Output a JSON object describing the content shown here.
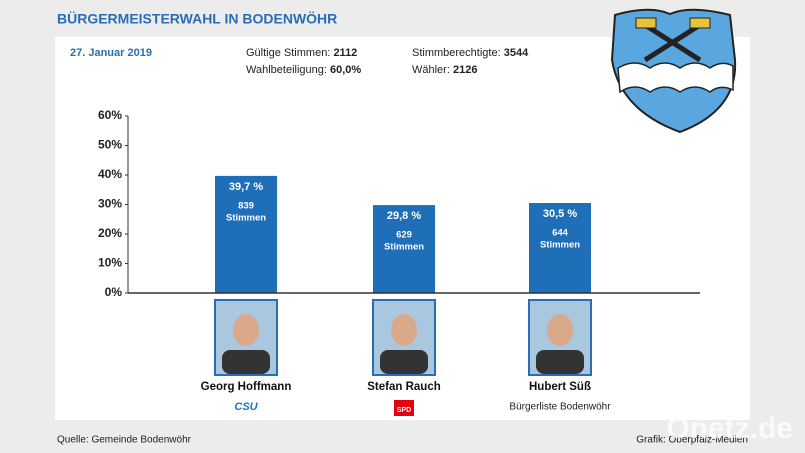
{
  "chart_data": {
    "type": "bar",
    "title": "BÜRGERMEISTERWAHL IN BODENWÖHR",
    "date": "27. Januar 2019",
    "stats": [
      {
        "label": "Gültige Stimmen:",
        "value": 2112
      },
      {
        "label": "Wahlbeteiligung:",
        "value": "60,0%"
      },
      {
        "label": "Stimmberechtigte:",
        "value": 3544
      },
      {
        "label": "Wähler:",
        "value": 2126
      }
    ],
    "categories": [
      "Georg Hoffmann",
      "Stefan Rauch",
      "Hubert Süß"
    ],
    "values": [
      39.7,
      29.8,
      30.5
    ],
    "value_labels": [
      "39,7 %",
      "29,8 %",
      "30,5 %"
    ],
    "votes": [
      839,
      629,
      644
    ],
    "votes_label": "Stimmen",
    "parties": [
      "CSU",
      "SPD",
      "Bürgerliste Bodenwöhr"
    ],
    "color": "#1f6fb8",
    "ylim": [
      0,
      60
    ],
    "yticks": [
      {
        "value": 0,
        "label": "0%"
      },
      {
        "value": 10,
        "label": "10%"
      },
      {
        "value": 20,
        "label": "20%"
      },
      {
        "value": 30,
        "label": "30%"
      },
      {
        "value": 40,
        "label": "40%"
      },
      {
        "value": 50,
        "label": "50%"
      },
      {
        "value": 60,
        "label": "60%"
      }
    ],
    "source": "Quelle: Gemeinde Bodenwöhr",
    "credit": "Grafik: Oberpfalz-Medien",
    "watermark": "Onetz.de"
  }
}
